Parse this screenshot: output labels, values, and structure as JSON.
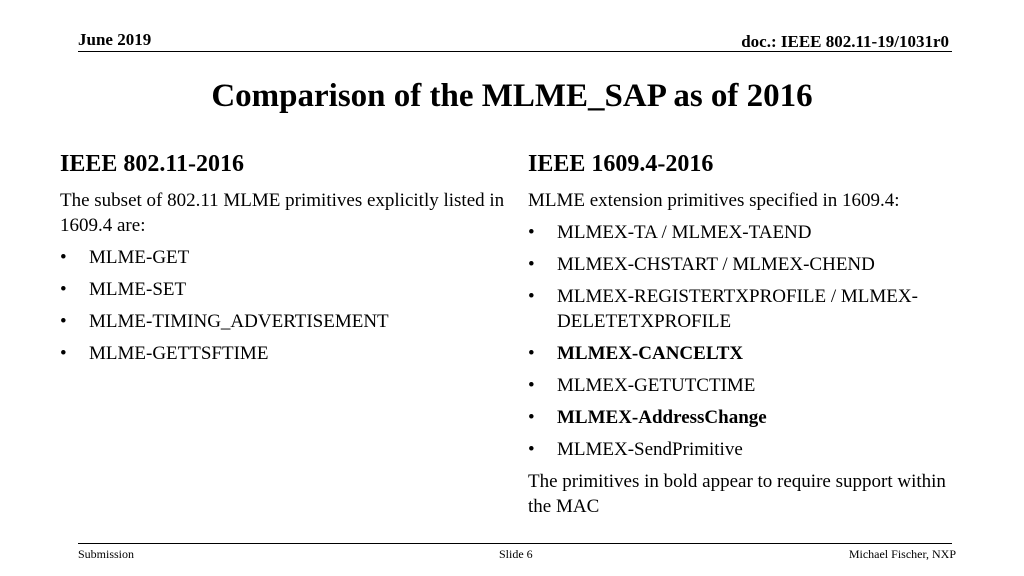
{
  "header": {
    "date": "June 2019",
    "doc": "doc.: IEEE 802.11-19/1031r0"
  },
  "title": "Comparison of the MLME_SAP as of 2016",
  "left": {
    "heading": "IEEE 802.11-2016",
    "intro": "The subset of 802.11 MLME primitives explicitly listed in 1609.4 are:",
    "bullet": "•",
    "items": [
      "MLME-GET",
      "MLME-SET",
      "MLME-TIMING_ADVERTISEMENT",
      "MLME-GETTSFTIME"
    ]
  },
  "right": {
    "heading": "IEEE 1609.4-2016",
    "intro": "MLME extension primitives specified in 1609.4:",
    "bullet": "•",
    "items": [
      "MLMEX-TA / MLMEX-TAEND",
      "MLMEX-CHSTART / MLMEX-CHEND",
      "MLMEX-REGISTERTXPROFILE / MLMEX-DELETETXPROFILE",
      "MLMEX-CANCELTX",
      "MLMEX-GETUTCTIME",
      "MLMEX-AddressChange",
      "MLMEX-SendPrimitive"
    ],
    "note": "The primitives in bold appear to require support within the MAC"
  },
  "footer": {
    "left": "Submission",
    "center": "Slide 6",
    "right": "Michael Fischer, NXP"
  }
}
